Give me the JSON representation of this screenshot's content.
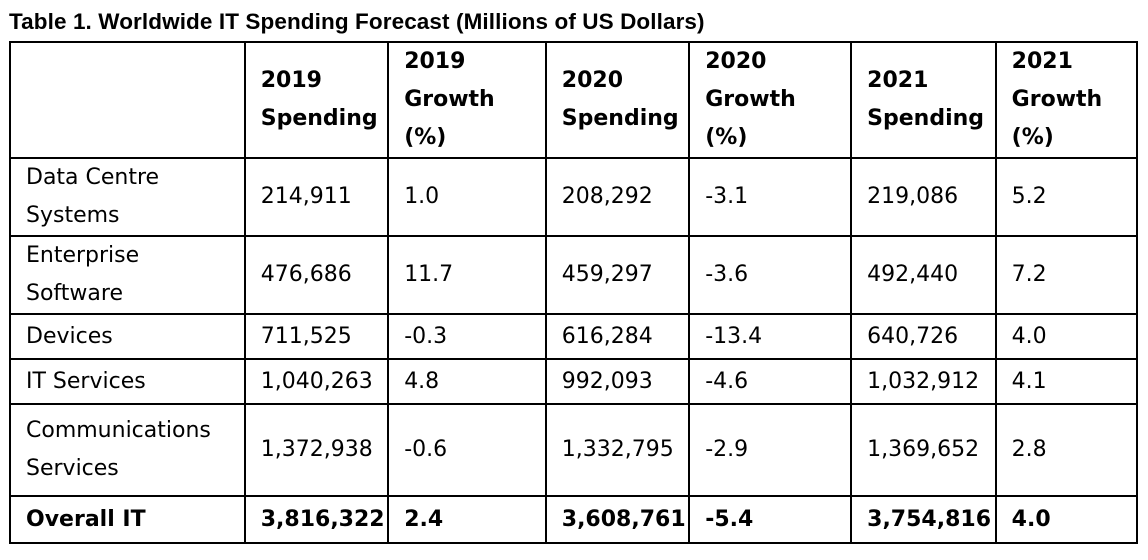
{
  "title": "Table 1. Worldwide IT Spending Forecast (Millions of US Dollars)",
  "header": {
    "corner": "",
    "columns": [
      [
        "2019",
        "Spending"
      ],
      [
        "2019",
        "Growth",
        "(%)"
      ],
      [
        "2020",
        "Spending"
      ],
      [
        "2020",
        "Growth",
        "(%)"
      ],
      [
        "2021",
        "Spending"
      ],
      [
        "2021",
        "Growth",
        "(%)"
      ]
    ]
  },
  "rows": [
    {
      "label": [
        "Data Centre",
        "Systems"
      ],
      "cells": [
        "214,911",
        "1.0",
        "208,292",
        "-3.1",
        "219,086",
        "5.2"
      ]
    },
    {
      "label": [
        "Enterprise",
        "Software"
      ],
      "cells": [
        "476,686",
        "11.7",
        "459,297",
        "-3.6",
        "492,440",
        "7.2"
      ]
    },
    {
      "label": [
        "Devices"
      ],
      "cells": [
        "711,525",
        "-0.3",
        "616,284",
        "-13.4",
        "640,726",
        "4.0"
      ]
    },
    {
      "label": [
        "IT Services"
      ],
      "cells": [
        "1,040,263",
        "4.8",
        "992,093",
        "-4.6",
        "1,032,912",
        "4.1"
      ]
    },
    {
      "label": [
        "Communications",
        "Services"
      ],
      "cells": [
        "1,372,938",
        "-0.6",
        "1,332,795",
        "-2.9",
        "1,369,652",
        "2.8"
      ]
    }
  ],
  "total": {
    "label": "Overall IT",
    "cells": [
      "3,816,322",
      "2.4",
      "3,608,761",
      "-5.4",
      "3,754,816",
      "4.0"
    ]
  },
  "chart_data": {
    "type": "table",
    "title": "Table 1. Worldwide IT Spending Forecast (Millions of US Dollars)",
    "columns": [
      "",
      "2019 Spending",
      "2019 Growth (%)",
      "2020 Spending",
      "2020 Growth (%)",
      "2021 Spending",
      "2021 Growth (%)"
    ],
    "rows": [
      [
        "Data Centre Systems",
        214911,
        1.0,
        208292,
        -3.1,
        219086,
        5.2
      ],
      [
        "Enterprise Software",
        476686,
        11.7,
        459297,
        -3.6,
        492440,
        7.2
      ],
      [
        "Devices",
        711525,
        -0.3,
        616284,
        -13.4,
        640726,
        4.0
      ],
      [
        "IT Services",
        1040263,
        4.8,
        992093,
        -4.6,
        1032912,
        4.1
      ],
      [
        "Communications Services",
        1372938,
        -0.6,
        1332795,
        -2.9,
        1369652,
        2.8
      ],
      [
        "Overall IT",
        3816322,
        2.4,
        3608761,
        -5.4,
        3754816,
        4.0
      ]
    ]
  }
}
